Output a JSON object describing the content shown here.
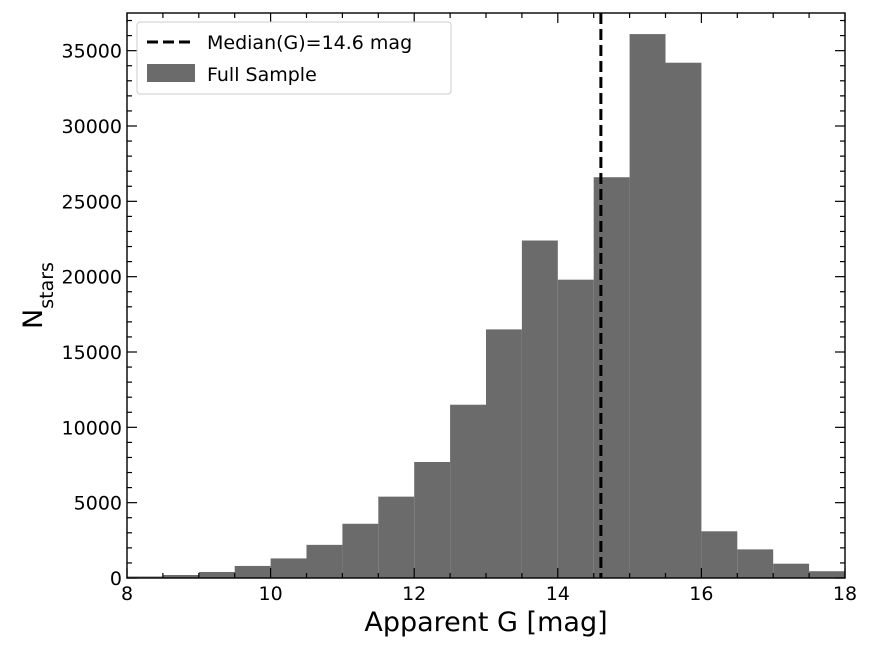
{
  "chart_data": {
    "type": "bar",
    "xlabel": "Apparent G [mag]",
    "ylabel_main": "N",
    "ylabel_sub": "stars",
    "xlim": [
      8,
      18
    ],
    "ylim": [
      0,
      37500
    ],
    "x_ticks": [
      8,
      10,
      12,
      14,
      16,
      18
    ],
    "y_ticks": [
      0,
      5000,
      10000,
      15000,
      20000,
      25000,
      30000,
      35000
    ],
    "bin_width": 0.5,
    "bins": [
      {
        "x0": 8.0,
        "x1": 8.5,
        "value": 100
      },
      {
        "x0": 8.5,
        "x1": 9.0,
        "value": 200
      },
      {
        "x0": 9.0,
        "x1": 9.5,
        "value": 400
      },
      {
        "x0": 9.5,
        "x1": 10.0,
        "value": 800
      },
      {
        "x0": 10.0,
        "x1": 10.5,
        "value": 1300
      },
      {
        "x0": 10.5,
        "x1": 11.0,
        "value": 2200
      },
      {
        "x0": 11.0,
        "x1": 11.5,
        "value": 3600
      },
      {
        "x0": 11.5,
        "x1": 12.0,
        "value": 5400
      },
      {
        "x0": 12.0,
        "x1": 12.5,
        "value": 7700
      },
      {
        "x0": 12.5,
        "x1": 13.0,
        "value": 11500
      },
      {
        "x0": 13.0,
        "x1": 13.5,
        "value": 16500
      },
      {
        "x0": 13.5,
        "x1": 14.0,
        "value": 22400
      },
      {
        "x0": 14.0,
        "x1": 14.5,
        "value": 19800
      },
      {
        "x0": 14.5,
        "x1": 15.0,
        "value": 26600
      },
      {
        "x0": 15.0,
        "x1": 15.5,
        "value": 36100
      },
      {
        "x0": 15.5,
        "x1": 16.0,
        "value": 34200
      },
      {
        "x0": 16.0,
        "x1": 16.5,
        "value": 3100
      },
      {
        "x0": 16.5,
        "x1": 17.0,
        "value": 1900
      },
      {
        "x0": 17.0,
        "x1": 17.5,
        "value": 950
      },
      {
        "x0": 17.5,
        "x1": 18.0,
        "value": 450
      }
    ],
    "median": {
      "value": 14.6,
      "label": "Median(G)=14.6 mag",
      "color": "#000000",
      "style": "dashed"
    },
    "series": [
      {
        "name": "Full Sample",
        "color": "#6b6b6b"
      }
    ],
    "legend": {
      "position": "top-left"
    },
    "grid": false
  }
}
